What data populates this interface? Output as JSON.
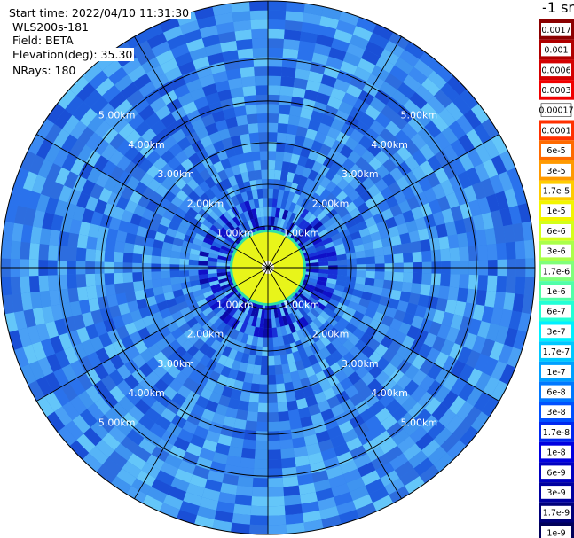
{
  "header": {
    "start_time": "Start time: 2022/04/10 11:31:30",
    "instrument": "WLS200s-181",
    "field": "Field: BETA",
    "elevation": "Elevation(deg): 35.30",
    "nrays": "NRays: 180"
  },
  "units_label": "-1 sr",
  "chart_data": {
    "type": "heatmap",
    "projection": "polar (PPI scan)",
    "range_rings": [
      "1.00km",
      "2.00km",
      "3.00km",
      "4.00km",
      "5.00km"
    ],
    "range_ring_values_km": [
      1,
      2,
      3,
      4,
      5
    ],
    "max_range_km": 6.4,
    "spoke_count": 12,
    "colorbar": {
      "labels": [
        "0.0017",
        "0.001",
        "0.0006",
        "0.0003",
        "0.00017",
        "0.0001",
        "6e-5",
        "3e-5",
        "1.7e-5",
        "1e-5",
        "6e-6",
        "3e-6",
        "1.7e-6",
        "1e-6",
        "6e-7",
        "3e-7",
        "1.7e-7",
        "1e-7",
        "6e-8",
        "3e-8",
        "1.7e-8",
        "1e-8",
        "6e-9",
        "3e-9",
        "1.7e-9",
        "1e-9"
      ],
      "colors": [
        "#8b0000",
        "#b00000",
        "#d40000",
        "#f00000",
        "#ffffff",
        "#ff3000",
        "#ff6a00",
        "#ff9a00",
        "#ffcc00",
        "#f2f500",
        "#d4ff1a",
        "#aaff4a",
        "#80ff7a",
        "#50ffa8",
        "#22ffd6",
        "#00f0ff",
        "#00c8ff",
        "#00a0ff",
        "#0078ff",
        "#0050ff",
        "#0028f0",
        "#0000e0",
        "#0000c0",
        "#0000a0",
        "#00007a",
        "#00005a"
      ]
    }
  }
}
